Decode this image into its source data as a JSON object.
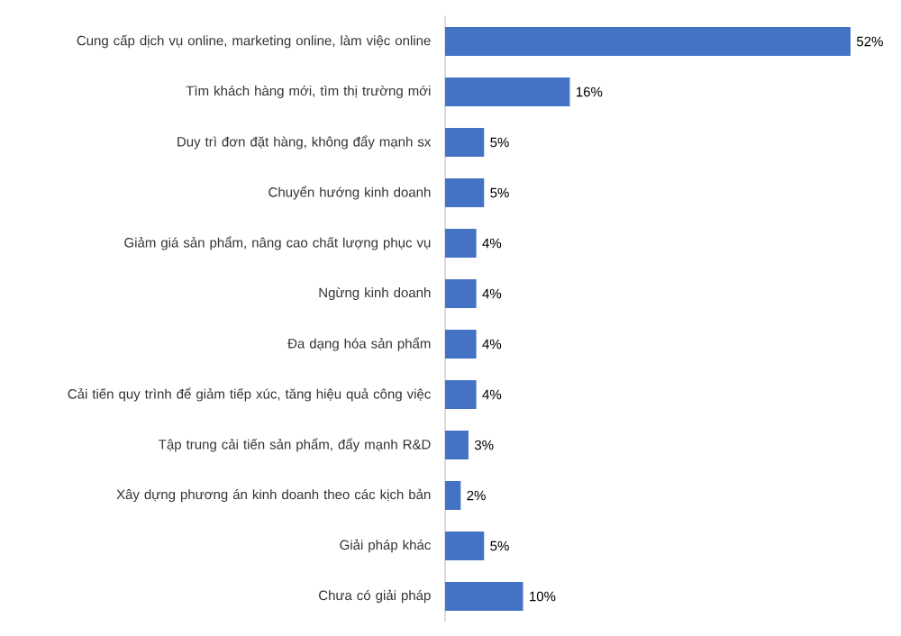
{
  "chart_data": {
    "type": "bar",
    "orientation": "horizontal",
    "categories": [
      "Cung cấp dịch vụ online, marketing online, làm việc online",
      "Tìm khách hàng mới, tìm thị trường mới",
      "Duy trì đơn đặt hàng, không đẩy mạnh sx",
      "Chuyển hướng kinh doanh",
      "Giảm giá sản phẩm, nâng cao chất lượng phục vụ",
      "Ngừng kinh doanh",
      "Đa dạng hóa sản phẩm",
      "Cải tiến quy trình để giảm tiếp xúc, tăng hiệu quả công việc",
      "Tập trung cải tiến sản phẩm, đẩy mạnh R&D",
      "Xây dựng phương án kinh doanh theo các kịch bản",
      "Giải pháp khác",
      "Chưa có giải pháp"
    ],
    "values": [
      52,
      16,
      5,
      5,
      4,
      4,
      4,
      4,
      3,
      2,
      5,
      10
    ],
    "value_labels": [
      "52%",
      "16%",
      "5%",
      "5%",
      "4%",
      "4%",
      "4%",
      "4%",
      "3%",
      "2%",
      "5%",
      "10%"
    ],
    "color": "#4472c4"
  }
}
